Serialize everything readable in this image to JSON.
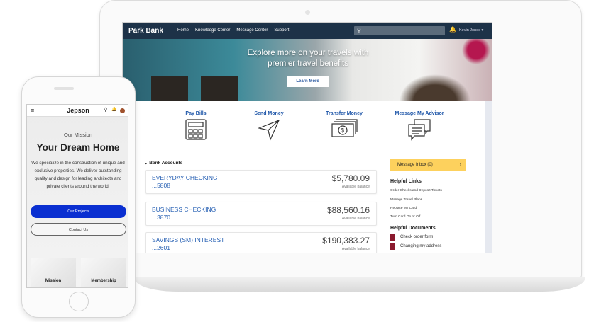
{
  "laptop": {
    "nav": {
      "brand": "Park Bank",
      "links": [
        "Home",
        "Knowledge Center",
        "Message Center",
        "Support"
      ],
      "active": "Home",
      "user": "Kevin Jones",
      "search_icon": "search-icon",
      "bell_icon": "bell-icon"
    },
    "hero": {
      "line1": "Explore more on your travels with",
      "line2": "premier travel benefits",
      "button": "Learn More"
    },
    "quick_actions": [
      {
        "label": "Pay Bills",
        "icon": "calculator-icon"
      },
      {
        "label": "Send Money",
        "icon": "paper-plane-icon"
      },
      {
        "label": "Transfer Money",
        "icon": "cash-icon"
      },
      {
        "label": "Message My Advisor",
        "icon": "chat-icon"
      }
    ],
    "section_title": "Bank Accounts",
    "accounts": [
      {
        "name": "EVERYDAY CHECKING",
        "number": "...5808",
        "balance": "$5,780.09",
        "balance_label": "Available balance"
      },
      {
        "name": "BUSINESS CHECKING",
        "number": "...3870",
        "balance": "$88,560.16",
        "balance_label": "Available balance"
      },
      {
        "name": "SAVINGS (SM) INTEREST",
        "number": "...2601",
        "balance": "$190,383.27",
        "balance_label": "Available balance"
      }
    ],
    "inbox": "Message Inbox (0)",
    "helpful_links_title": "Helpful Links",
    "helpful_links": [
      "Order Checks and Deposit Tickets",
      "Manage Travel Plans",
      "Replace My Card",
      "Turn Card On or Off"
    ],
    "helpful_docs_title": "Helpful Documents",
    "helpful_docs": [
      "Check order form",
      "Changing my address"
    ],
    "colors": {
      "nav": "#1d3248",
      "link": "#2861b4",
      "inbox": "#fdd15d",
      "accent": "#f5b800"
    }
  },
  "phone": {
    "brand": "Jepson",
    "eyebrow": "Our Mission",
    "title": "Your Dream Home",
    "body": "We specialize in the construction of unique and exclusive properties.  We deliver outstanding quality and design for leading architects and private clients around the world.",
    "primary_button": "Our Projects",
    "secondary_button": "Contact Us",
    "tiles": [
      "Mission",
      "Membership"
    ],
    "colors": {
      "primary": "#0a2fd1"
    }
  }
}
